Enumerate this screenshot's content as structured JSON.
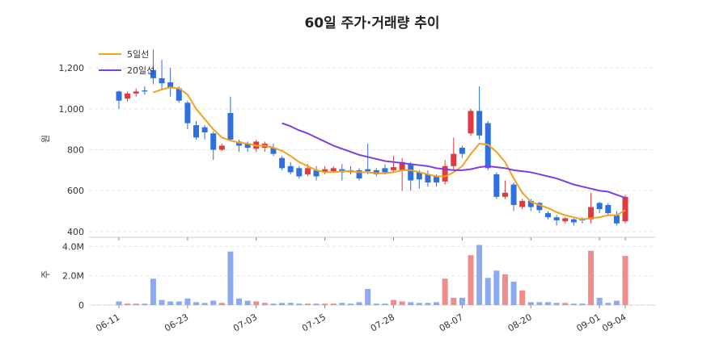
{
  "chart_data": [
    {
      "type": "candlestick",
      "title": "60일 주가·거래량 추이",
      "y_label": "원",
      "categories": [
        "06-11",
        null,
        null,
        null,
        null,
        null,
        null,
        null,
        "06-23",
        null,
        null,
        null,
        null,
        null,
        null,
        null,
        "07-03",
        null,
        null,
        null,
        null,
        null,
        null,
        null,
        "07-15",
        null,
        null,
        null,
        null,
        null,
        null,
        null,
        "07-28",
        null,
        null,
        null,
        null,
        null,
        null,
        null,
        "08-07",
        null,
        null,
        null,
        null,
        null,
        null,
        null,
        "08-20",
        null,
        null,
        null,
        null,
        null,
        null,
        null,
        "09-01",
        null,
        null,
        "09-04"
      ],
      "open": [
        1085,
        1050,
        1075,
        1090,
        1190,
        1150,
        1130,
        1100,
        1030,
        920,
        910,
        880,
        800,
        980,
        840,
        830,
        805,
        810,
        810,
        760,
        720,
        710,
        680,
        700,
        690,
        695,
        705,
        700,
        700,
        705,
        700,
        710,
        700,
        700,
        730,
        690,
        680,
        670,
        645,
        720,
        810,
        880,
        990,
        930,
        680,
        570,
        630,
        520,
        550,
        540,
        490,
        470,
        450,
        460,
        460,
        460,
        540,
        530,
        480,
        450
      ],
      "high": [
        1090,
        1085,
        1100,
        1110,
        1290,
        1240,
        1200,
        1110,
        1040,
        940,
        920,
        890,
        830,
        1060,
        850,
        840,
        850,
        840,
        830,
        770,
        740,
        720,
        730,
        720,
        720,
        720,
        730,
        720,
        710,
        830,
        710,
        730,
        770,
        760,
        740,
        700,
        700,
        680,
        750,
        860,
        820,
        1000,
        1110,
        940,
        690,
        650,
        640,
        560,
        560,
        545,
        500,
        480,
        470,
        465,
        470,
        590,
        545,
        540,
        500,
        580
      ],
      "low": [
        1000,
        1035,
        1060,
        1070,
        1120,
        1090,
        1060,
        1030,
        900,
        850,
        850,
        750,
        795,
        840,
        790,
        790,
        790,
        790,
        770,
        700,
        680,
        660,
        670,
        650,
        680,
        690,
        650,
        680,
        650,
        680,
        670,
        680,
        690,
        600,
        600,
        610,
        620,
        620,
        630,
        700,
        760,
        870,
        850,
        700,
        560,
        560,
        500,
        510,
        500,
        490,
        460,
        430,
        440,
        430,
        440,
        440,
        490,
        480,
        430,
        440
      ],
      "close": [
        1040,
        1075,
        1085,
        1085,
        1150,
        1125,
        1100,
        1040,
        930,
        860,
        885,
        800,
        820,
        850,
        820,
        810,
        840,
        830,
        780,
        710,
        690,
        670,
        710,
        670,
        705,
        710,
        690,
        690,
        660,
        695,
        680,
        690,
        715,
        740,
        650,
        655,
        640,
        640,
        720,
        780,
        780,
        990,
        870,
        710,
        570,
        590,
        530,
        550,
        520,
        505,
        470,
        455,
        465,
        445,
        455,
        520,
        510,
        490,
        440,
        570
      ],
      "up_color": "#e03a3e",
      "down_color": "#2f6fde",
      "series": [
        {
          "name": "5일선",
          "color": "#f5a01e",
          "values": [
            null,
            null,
            null,
            null,
            1080,
            1095,
            1105,
            1100,
            1070,
            1000,
            950,
            900,
            860,
            845,
            835,
            830,
            820,
            820,
            810,
            795,
            770,
            740,
            720,
            700,
            690,
            690,
            695,
            695,
            690,
            690,
            685,
            685,
            690,
            700,
            700,
            690,
            680,
            670,
            670,
            690,
            720,
            780,
            830,
            825,
            790,
            740,
            660,
            590,
            545,
            530,
            515,
            495,
            480,
            470,
            460,
            465,
            470,
            480,
            480,
            505
          ]
        },
        {
          "name": "20일선",
          "color": "#7b3fe4",
          "values": [
            null,
            null,
            null,
            null,
            null,
            null,
            null,
            null,
            null,
            null,
            null,
            null,
            null,
            null,
            null,
            null,
            null,
            null,
            null,
            930,
            915,
            895,
            880,
            860,
            840,
            820,
            805,
            790,
            775,
            765,
            755,
            745,
            740,
            735,
            730,
            725,
            720,
            710,
            705,
            700,
            700,
            705,
            715,
            720,
            715,
            710,
            700,
            695,
            690,
            680,
            670,
            660,
            645,
            630,
            620,
            610,
            600,
            595,
            580,
            565
          ]
        }
      ],
      "ylim": [
        372,
        1335
      ],
      "yticks": [
        400,
        600,
        800,
        {
          "value": 1000,
          "label": "1,000"
        },
        {
          "value": 1200,
          "label": "1,200"
        }
      ],
      "grid": true,
      "legend": "upper left"
    },
    {
      "type": "bar",
      "y_label": "주",
      "values": [
        250000,
        100000,
        100000,
        100000,
        1800000,
        350000,
        250000,
        250000,
        450000,
        200000,
        150000,
        300000,
        150000,
        3650000,
        450000,
        300000,
        250000,
        150000,
        100000,
        150000,
        150000,
        100000,
        100000,
        100000,
        100000,
        100000,
        150000,
        100000,
        200000,
        1100000,
        100000,
        100000,
        350000,
        250000,
        200000,
        150000,
        150000,
        200000,
        1800000,
        500000,
        500000,
        3400000,
        4100000,
        1850000,
        2350000,
        2100000,
        1600000,
        1000000,
        200000,
        200000,
        200000,
        150000,
        150000,
        100000,
        100000,
        3700000,
        500000,
        150000,
        300000,
        3350000
      ],
      "up_color": "#f08c8c",
      "down_color": "#8caaf0",
      "ylim": [
        0,
        4400000
      ],
      "yticks": [
        0,
        {
          "value": 2000000,
          "label": "2.0M"
        },
        {
          "value": 4000000,
          "label": "4.0M"
        }
      ]
    }
  ]
}
